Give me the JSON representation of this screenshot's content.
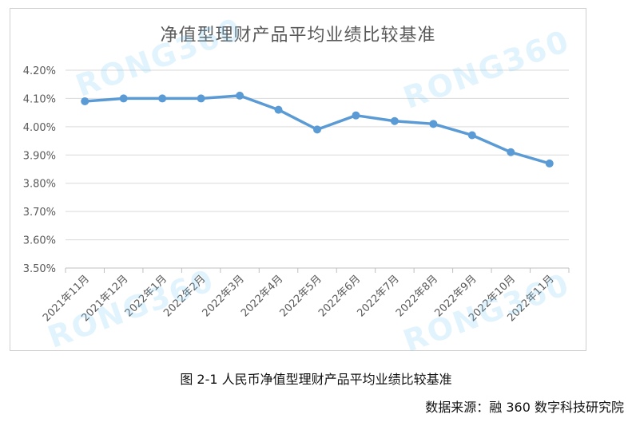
{
  "chart_data": {
    "type": "line",
    "title": "净值型理财产品平均业绩比较基准",
    "categories": [
      "2021年11月",
      "2021年12月",
      "2022年1月",
      "2022年2月",
      "2022年3月",
      "2022年4月",
      "2022年5月",
      "2022年6月",
      "2022年7月",
      "2022年8月",
      "2022年9月",
      "2022年10月",
      "2022年11月"
    ],
    "series": [
      {
        "values": [
          4.09,
          4.1,
          4.1,
          4.1,
          4.11,
          4.06,
          3.99,
          4.04,
          4.02,
          4.01,
          3.97,
          3.91,
          3.87
        ]
      }
    ],
    "yticks": [
      "3.50%",
      "3.60%",
      "3.70%",
      "3.80%",
      "3.90%",
      "4.00%",
      "4.10%",
      "4.20%"
    ],
    "ylim": [
      3.5,
      4.2
    ],
    "grid": true,
    "line_color": "#5B9BD5"
  },
  "caption": "图 2-1 人民币净值型理财产品平均业绩比较基准",
  "source": "数据来源：融 360 数字科技研究院",
  "watermark": "RONG360"
}
